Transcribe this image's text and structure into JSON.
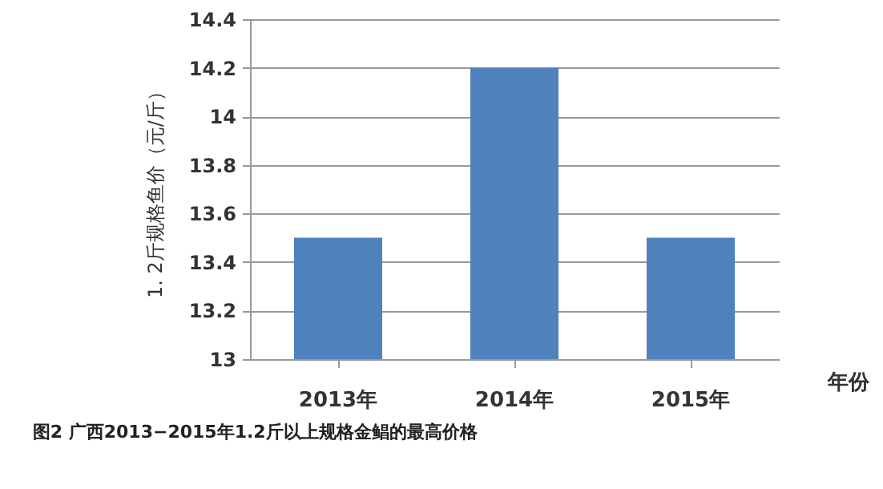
{
  "chart_data": {
    "type": "bar",
    "xlabel": "年份",
    "ylabel": "1. 2斤规格鱼价（元/斤）",
    "categories": [
      "2013年",
      "2014年",
      "2015年"
    ],
    "values": [
      13.5,
      14.2,
      13.5
    ],
    "color": "#4f81bd",
    "ylim": [
      13,
      14.4
    ],
    "yticks": [
      13,
      13.2,
      13.4,
      13.6,
      13.8,
      14,
      14.2,
      14.4
    ],
    "grid": "y",
    "annotations": [
      "图2 广西2013−2015年1.2斤以上规格金鲳的最高价格"
    ]
  }
}
